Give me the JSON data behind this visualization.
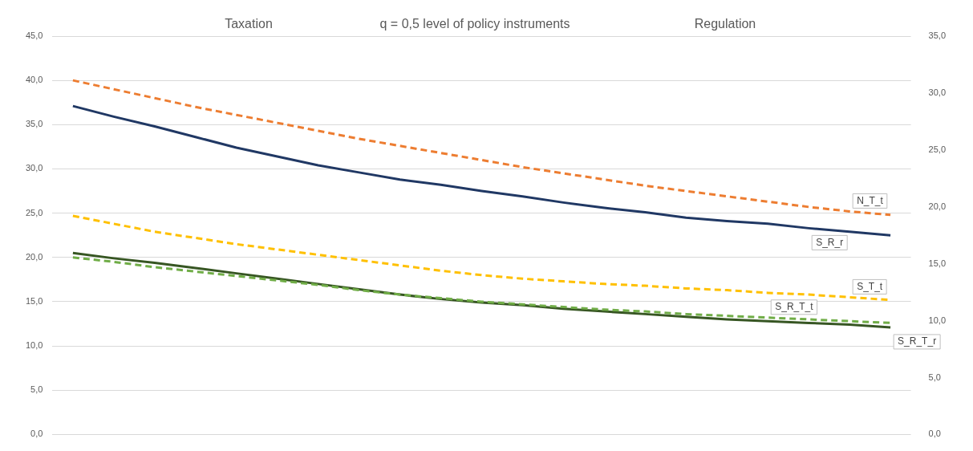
{
  "chart_data": {
    "type": "line",
    "title": "q = 0,5 level of policy instruments",
    "annotations": [
      "Taxation",
      "Regulation"
    ],
    "categories": [
      null,
      null,
      null,
      null,
      null,
      null,
      null,
      null,
      null,
      null,
      null,
      null,
      null,
      null,
      null,
      null,
      null,
      null,
      null,
      null,
      null
    ],
    "series": [
      {
        "name": "N_T_t",
        "color": "#ed7d31",
        "line_style": "dashed",
        "values": [
          40.0,
          39.0,
          38.0,
          37.0,
          36.1,
          35.2,
          34.3,
          33.4,
          32.6,
          31.8,
          31.0,
          30.2,
          29.5,
          28.8,
          28.1,
          27.5,
          26.9,
          26.3,
          25.7,
          25.2,
          24.8
        ]
      },
      {
        "name": "S_R_r",
        "color": "#203864",
        "line_style": "solid",
        "values": [
          37.1,
          35.9,
          34.8,
          33.6,
          32.4,
          31.4,
          30.4,
          29.6,
          28.8,
          28.2,
          27.5,
          26.9,
          26.2,
          25.6,
          25.1,
          24.5,
          24.1,
          23.8,
          23.3,
          22.9,
          22.5
        ]
      },
      {
        "name": "S_T_t",
        "color": "#ffc000",
        "line_style": "dashed",
        "values": [
          24.7,
          23.8,
          22.9,
          22.2,
          21.5,
          20.9,
          20.3,
          19.7,
          19.1,
          18.5,
          18.0,
          17.6,
          17.3,
          17.0,
          16.8,
          16.5,
          16.3,
          16.0,
          15.8,
          15.5,
          15.2
        ]
      },
      {
        "name": "S_R_T_t",
        "color": "#70ad47",
        "line_style": "dashed",
        "values": [
          20.0,
          19.5,
          18.9,
          18.4,
          17.9,
          17.4,
          16.9,
          16.3,
          15.8,
          15.4,
          15.0,
          14.7,
          14.4,
          14.1,
          13.9,
          13.6,
          13.4,
          13.2,
          13.0,
          12.8,
          12.6
        ]
      },
      {
        "name": "S_R_T_r",
        "color": "#375623",
        "line_style": "solid",
        "values": [
          20.5,
          19.9,
          19.4,
          18.8,
          18.2,
          17.6,
          17.0,
          16.4,
          15.8,
          15.3,
          14.9,
          14.6,
          14.2,
          13.9,
          13.6,
          13.3,
          13.0,
          12.8,
          12.6,
          12.4,
          12.1
        ]
      }
    ],
    "ylim": [
      0,
      45
    ],
    "yticks": [
      {
        "value": 0,
        "label": "0,0"
      },
      {
        "value": 5,
        "label": "5,0"
      },
      {
        "value": 10,
        "label": "10,0"
      },
      {
        "value": 15,
        "label": "15,0"
      },
      {
        "value": 20,
        "label": "20,0"
      },
      {
        "value": 25,
        "label": "25,0"
      },
      {
        "value": 30,
        "label": "30,0"
      },
      {
        "value": 35,
        "label": "35,0"
      },
      {
        "value": 40,
        "label": "40,0"
      },
      {
        "value": 45,
        "label": "45,0"
      }
    ],
    "y2lim": [
      0,
      35
    ],
    "y2ticks": [
      {
        "value": 0,
        "label": "0,0"
      },
      {
        "value": 5,
        "label": "5,0"
      },
      {
        "value": 10,
        "label": "10,0"
      },
      {
        "value": 15,
        "label": "15,0"
      },
      {
        "value": 20,
        "label": "20,0"
      },
      {
        "value": 25,
        "label": "25,0"
      },
      {
        "value": 30,
        "label": "30,0"
      },
      {
        "value": 35,
        "label": "35,0"
      }
    ],
    "grid": "y",
    "legend": false,
    "marker": "none"
  }
}
